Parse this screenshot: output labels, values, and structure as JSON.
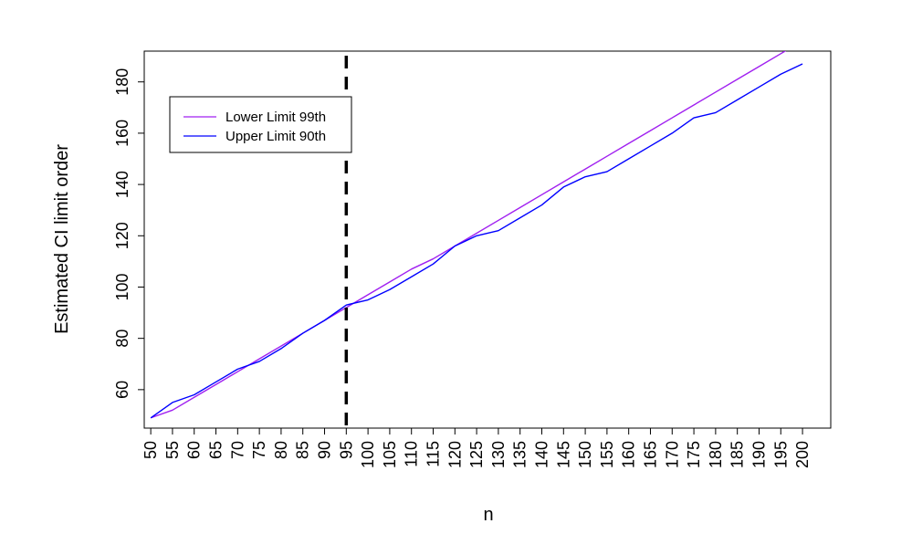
{
  "chart_data": {
    "type": "line",
    "title": "",
    "xlabel": "n",
    "ylabel": "Estimated CI limit order",
    "x": [
      50,
      55,
      60,
      65,
      70,
      75,
      80,
      85,
      90,
      95,
      100,
      105,
      110,
      115,
      120,
      125,
      130,
      135,
      140,
      145,
      150,
      155,
      160,
      165,
      170,
      175,
      180,
      185,
      190,
      195,
      200
    ],
    "x_tick_labels": [
      "50",
      "55",
      "60",
      "65",
      "70",
      "75",
      "80",
      "85",
      "90",
      "95",
      "100",
      "105",
      "110",
      "115",
      "120",
      "125",
      "130",
      "135",
      "140",
      "145",
      "150",
      "155",
      "160",
      "165",
      "170",
      "175",
      "180",
      "185",
      "190",
      "195",
      "200"
    ],
    "y_ticks": [
      60,
      80,
      100,
      120,
      140,
      160,
      180
    ],
    "y_tick_labels": [
      "60",
      "80",
      "100",
      "120",
      "140",
      "160",
      "180"
    ],
    "xlim": [
      48.5,
      206.5
    ],
    "ylim": [
      45,
      192
    ],
    "grid": false,
    "legend_position": "top-left",
    "series": [
      {
        "name": "Lower Limit 99th",
        "color": "#a020f0",
        "values": [
          49,
          52,
          57,
          62,
          67,
          72,
          77,
          82,
          87,
          92,
          97,
          102,
          107,
          111,
          116,
          121,
          126,
          131,
          136,
          141,
          146,
          151,
          156,
          161,
          166,
          171,
          176,
          181,
          186,
          191,
          196
        ]
      },
      {
        "name": "Upper Limit 90th",
        "color": "#0000ff",
        "values": [
          49,
          55,
          58,
          63,
          68,
          71,
          76,
          82,
          87,
          93,
          95,
          99,
          104,
          109,
          116,
          120,
          122,
          127,
          132,
          139,
          143,
          145,
          150,
          155,
          160,
          166,
          168,
          173,
          178,
          183,
          187
        ]
      }
    ],
    "reference_line": {
      "x": 95,
      "style": "dashed",
      "color": "#000000"
    }
  }
}
